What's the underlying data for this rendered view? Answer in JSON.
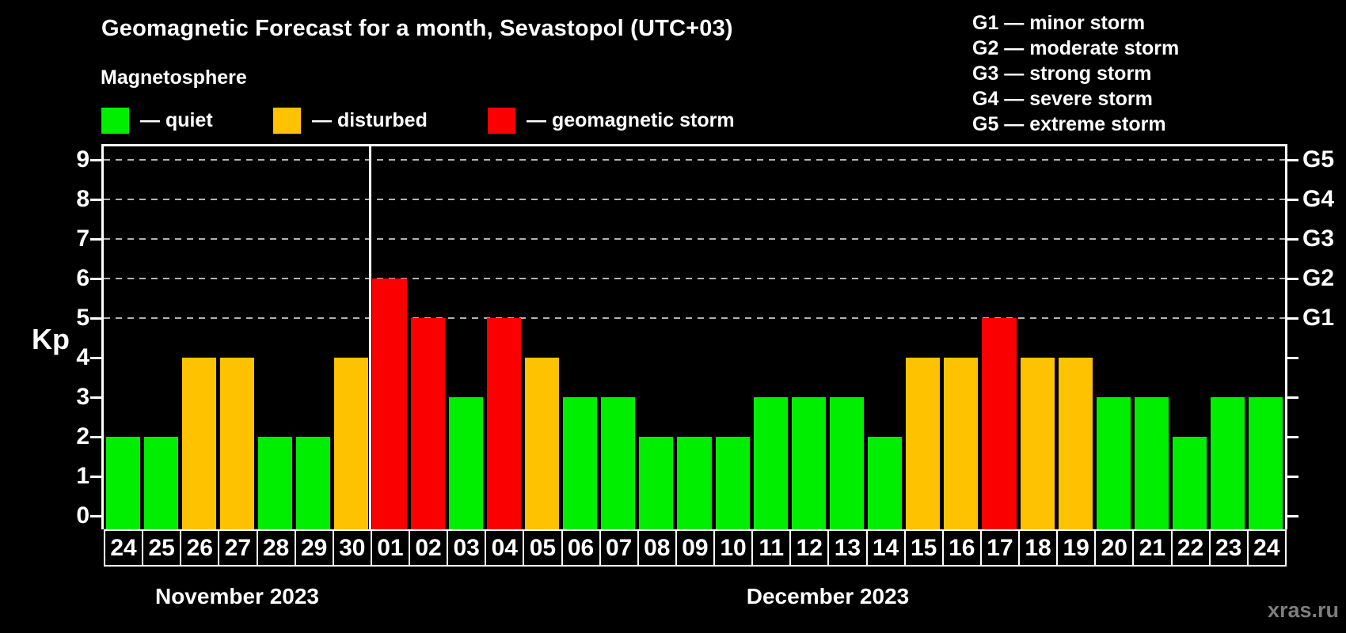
{
  "title": "Geomagnetic Forecast for a month, Sevastopol (UTC+03)",
  "subtitle": "Magnetosphere",
  "watermark": "xras.ru",
  "legend": [
    {
      "key": "quiet",
      "label": "— quiet",
      "color": "#00ef00"
    },
    {
      "key": "disturbed",
      "label": "— disturbed",
      "color": "#ffc200"
    },
    {
      "key": "storm",
      "label": "— geomagnetic storm",
      "color": "#fb0000"
    }
  ],
  "storm_scale": [
    "G1 — minor storm",
    "G2 — moderate storm",
    "G3 — strong storm",
    "G4 — severe storm",
    "G5 — extreme storm"
  ],
  "chart_data": {
    "type": "bar",
    "title": "Geomagnetic Forecast for a month, Sevastopol (UTC+03)",
    "ylabel": "Kp",
    "ylim": [
      0,
      9.4
    ],
    "yticks": [
      0,
      1,
      2,
      3,
      4,
      5,
      6,
      7,
      8,
      9
    ],
    "grid_levels": [
      5,
      6,
      7,
      8,
      9
    ],
    "right_axis_labels": {
      "5": "G1",
      "6": "G2",
      "7": "G3",
      "8": "G4",
      "9": "G5"
    },
    "status_colors": {
      "quiet": "#00ef00",
      "disturbed": "#ffc200",
      "storm": "#fb0000"
    },
    "months": [
      {
        "label": "November 2023",
        "days": 7
      },
      {
        "label": "December 2023",
        "days": 24
      }
    ],
    "categories": [
      "24",
      "25",
      "26",
      "27",
      "28",
      "29",
      "30",
      "01",
      "02",
      "03",
      "04",
      "05",
      "06",
      "07",
      "08",
      "09",
      "10",
      "11",
      "12",
      "13",
      "14",
      "15",
      "16",
      "17",
      "18",
      "19",
      "20",
      "21",
      "22",
      "23",
      "24"
    ],
    "values": [
      2,
      2,
      4,
      4,
      2,
      2,
      4,
      6,
      5,
      3,
      5,
      4,
      3,
      3,
      2,
      2,
      2,
      3,
      3,
      3,
      2,
      4,
      4,
      5,
      4,
      4,
      3,
      3,
      2,
      3,
      3
    ],
    "bars": [
      {
        "day": "24",
        "kp": 2,
        "status": "quiet"
      },
      {
        "day": "25",
        "kp": 2,
        "status": "quiet"
      },
      {
        "day": "26",
        "kp": 4,
        "status": "disturbed"
      },
      {
        "day": "27",
        "kp": 4,
        "status": "disturbed"
      },
      {
        "day": "28",
        "kp": 2,
        "status": "quiet"
      },
      {
        "day": "29",
        "kp": 2,
        "status": "quiet"
      },
      {
        "day": "30",
        "kp": 4,
        "status": "disturbed"
      },
      {
        "day": "01",
        "kp": 6,
        "status": "storm"
      },
      {
        "day": "02",
        "kp": 5,
        "status": "storm"
      },
      {
        "day": "03",
        "kp": 3,
        "status": "quiet"
      },
      {
        "day": "04",
        "kp": 5,
        "status": "storm"
      },
      {
        "day": "05",
        "kp": 4,
        "status": "disturbed"
      },
      {
        "day": "06",
        "kp": 3,
        "status": "quiet"
      },
      {
        "day": "07",
        "kp": 3,
        "status": "quiet"
      },
      {
        "day": "08",
        "kp": 2,
        "status": "quiet"
      },
      {
        "day": "09",
        "kp": 2,
        "status": "quiet"
      },
      {
        "day": "10",
        "kp": 2,
        "status": "quiet"
      },
      {
        "day": "11",
        "kp": 3,
        "status": "quiet"
      },
      {
        "day": "12",
        "kp": 3,
        "status": "quiet"
      },
      {
        "day": "13",
        "kp": 3,
        "status": "quiet"
      },
      {
        "day": "14",
        "kp": 2,
        "status": "quiet"
      },
      {
        "day": "15",
        "kp": 4,
        "status": "disturbed"
      },
      {
        "day": "16",
        "kp": 4,
        "status": "disturbed"
      },
      {
        "day": "17",
        "kp": 5,
        "status": "storm"
      },
      {
        "day": "18",
        "kp": 4,
        "status": "disturbed"
      },
      {
        "day": "19",
        "kp": 4,
        "status": "disturbed"
      },
      {
        "day": "20",
        "kp": 3,
        "status": "quiet"
      },
      {
        "day": "21",
        "kp": 3,
        "status": "quiet"
      },
      {
        "day": "22",
        "kp": 2,
        "status": "quiet"
      },
      {
        "day": "23",
        "kp": 3,
        "status": "quiet"
      },
      {
        "day": "24",
        "kp": 3,
        "status": "quiet"
      }
    ]
  }
}
